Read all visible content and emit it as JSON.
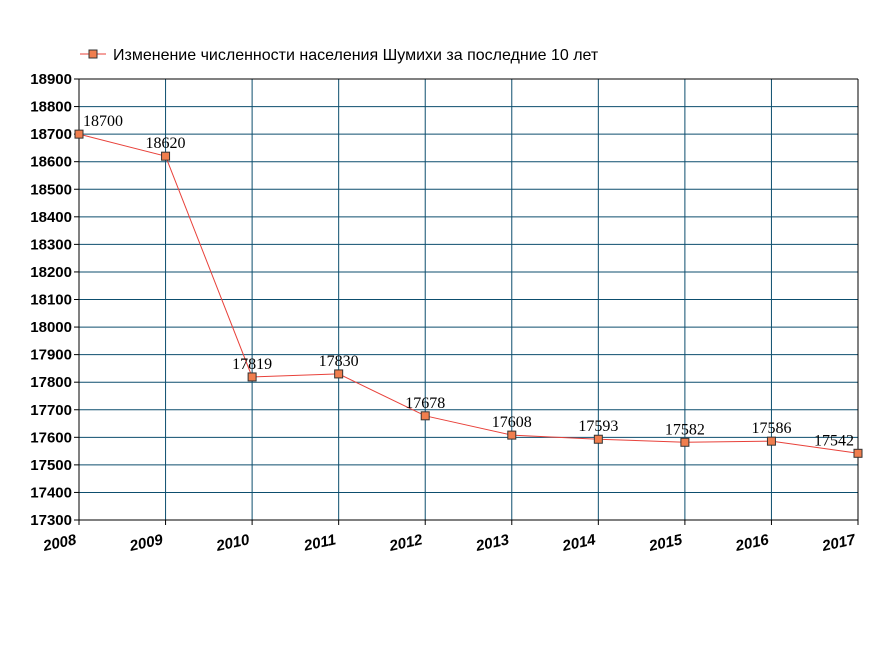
{
  "chart_data": {
    "type": "line",
    "legend_position": "top-left",
    "grid": true,
    "x": [
      "2008",
      "2009",
      "2010",
      "2011",
      "2012",
      "2013",
      "2014",
      "2015",
      "2016",
      "2017"
    ],
    "series": [
      {
        "name": "Изменение численности населения Шумихи за последние 10 лет",
        "values": [
          18700,
          18620,
          17819,
          17830,
          17678,
          17608,
          17593,
          17582,
          17586,
          17542
        ],
        "line_color": "#e8413a",
        "marker_color": "#f07e4e"
      }
    ],
    "ylim": [
      17300,
      18900
    ],
    "ytick_step": 100
  }
}
